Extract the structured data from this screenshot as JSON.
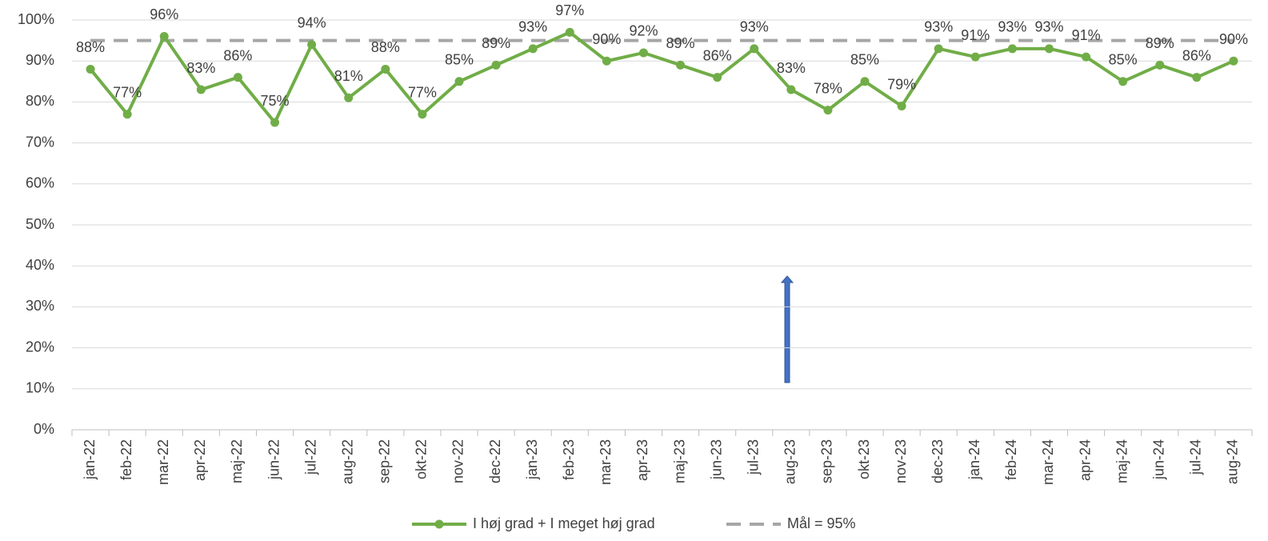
{
  "chart_data": {
    "type": "line",
    "categories": [
      "jan-22",
      "feb-22",
      "mar-22",
      "apr-22",
      "maj-22",
      "jun-22",
      "jul-22",
      "aug-22",
      "sep-22",
      "okt-22",
      "nov-22",
      "dec-22",
      "jan-23",
      "feb-23",
      "mar-23",
      "apr-23",
      "maj-23",
      "jun-23",
      "jul-23",
      "aug-23",
      "sep-23",
      "okt-23",
      "nov-23",
      "dec-23",
      "jan-24",
      "feb-24",
      "mar-24",
      "apr-24",
      "maj-24",
      "jun-24",
      "jul-24",
      "aug-24"
    ],
    "series": [
      {
        "name": "I høj grad + I meget høj grad",
        "color": "#70ad47",
        "markers": true,
        "values": [
          88,
          77,
          96,
          83,
          86,
          75,
          94,
          81,
          88,
          77,
          85,
          89,
          93,
          97,
          90,
          92,
          89,
          86,
          93,
          83,
          78,
          85,
          79,
          93,
          91,
          93,
          93,
          91,
          85,
          89,
          86,
          90
        ],
        "value_labels": [
          "88%",
          "77%",
          "96%",
          "83%",
          "86%",
          "75%",
          "94%",
          "81%",
          "88%",
          "77%",
          "85%",
          "89%",
          "93%",
          "97%",
          "90%",
          "92%",
          "89%",
          "86%",
          "93%",
          "83%",
          "78%",
          "85%",
          "79%",
          "93%",
          "91%",
          "93%",
          "93%",
          "91%",
          "85%",
          "89%",
          "86%",
          "90%"
        ]
      },
      {
        "name": "Mål = 95%",
        "color": "#a6a6a6",
        "dashed": true,
        "values": [
          95,
          95,
          95,
          95,
          95,
          95,
          95,
          95,
          95,
          95,
          95,
          95,
          95,
          95,
          95,
          95,
          95,
          95,
          95,
          95,
          95,
          95,
          95,
          95,
          95,
          95,
          95,
          95,
          95,
          95,
          95,
          95
        ]
      }
    ],
    "ylim": [
      0,
      100
    ],
    "yticks": [
      {
        "value": 0,
        "label": "0%"
      },
      {
        "value": 10,
        "label": "10%"
      },
      {
        "value": 20,
        "label": "20%"
      },
      {
        "value": 30,
        "label": "30%"
      },
      {
        "value": 40,
        "label": "40%"
      },
      {
        "value": 50,
        "label": "50%"
      },
      {
        "value": 60,
        "label": "60%"
      },
      {
        "value": 70,
        "label": "70%"
      },
      {
        "value": 80,
        "label": "80%"
      },
      {
        "value": 90,
        "label": "90%"
      },
      {
        "value": 100,
        "label": "100%"
      }
    ],
    "grid": true,
    "legend": "bottom"
  }
}
